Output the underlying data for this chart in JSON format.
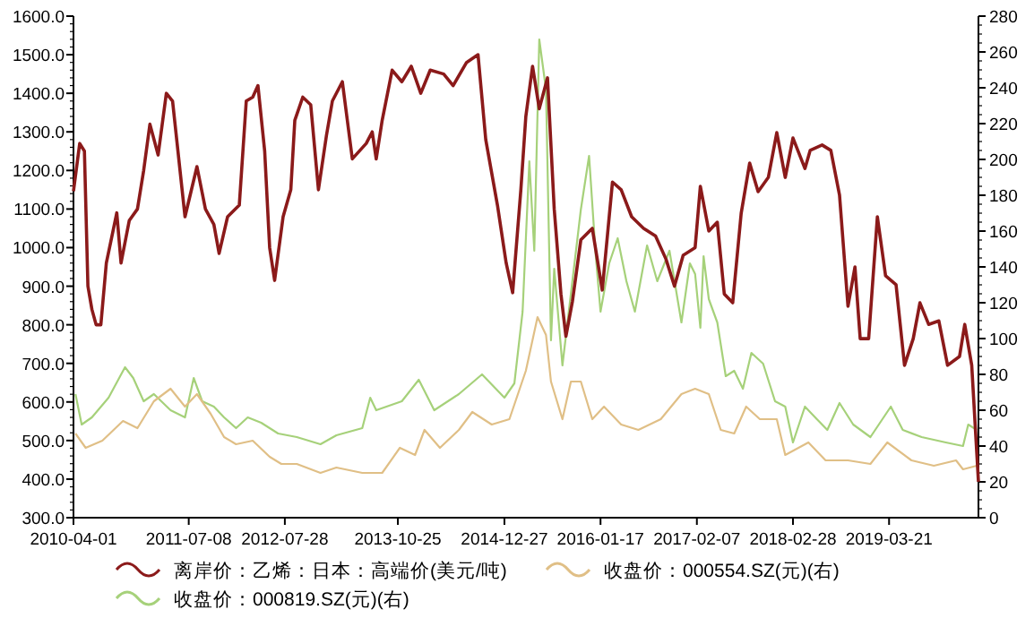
{
  "chart_data": {
    "type": "line",
    "xlim": [
      "2010-04-01",
      "2020-03-14"
    ],
    "xticks": [
      "2010-04-01",
      "2011-07-08",
      "2012-07-28",
      "2013-10-25",
      "2014-12-27",
      "2016-01-17",
      "2017-02-07",
      "2018-02-28",
      "2019-03-21"
    ],
    "ylim": [
      300,
      1600
    ],
    "yticks": [
      {
        "value": 300,
        "label": "300.0"
      },
      {
        "value": 400,
        "label": "400.0"
      },
      {
        "value": 500,
        "label": "500.0"
      },
      {
        "value": 600,
        "label": "600.0"
      },
      {
        "value": 700,
        "label": "700.0"
      },
      {
        "value": 800,
        "label": "800.0"
      },
      {
        "value": 900,
        "label": "900.0"
      },
      {
        "value": 1000,
        "label": "1000.0"
      },
      {
        "value": 1100,
        "label": "1100.0"
      },
      {
        "value": 1200,
        "label": "1200.0"
      },
      {
        "value": 1300,
        "label": "1300.0"
      },
      {
        "value": 1400,
        "label": "1400.0"
      },
      {
        "value": 1500,
        "label": "1500.0"
      },
      {
        "value": 1600,
        "label": "1600.0"
      }
    ],
    "y2lim": [
      0,
      280
    ],
    "y2ticks": [
      0,
      20,
      40,
      60,
      80,
      100,
      120,
      140,
      160,
      180,
      200,
      220,
      240,
      260,
      280
    ],
    "legend": "bottom",
    "series": [
      {
        "name": "离岸价：乙烯：日本：高端价(美元/吨)",
        "color": "#8b1a1a",
        "x": [
          "2010-04-01",
          "2010-04-26",
          "2010-05-15",
          "2010-05-29",
          "2010-06-14",
          "2010-07-01",
          "2010-07-20",
          "2010-08-11",
          "2010-09-22",
          "2010-10-09",
          "2010-11-11",
          "2010-12-14",
          "2011-01-08",
          "2011-02-02",
          "2011-03-07",
          "2011-04-09",
          "2011-05-04",
          "2011-06-23",
          "2011-08-10",
          "2011-09-13",
          "2011-10-17",
          "2011-11-07",
          "2011-12-11",
          "2012-01-27",
          "2012-02-24",
          "2012-03-21",
          "2012-04-11",
          "2012-05-08",
          "2012-05-28",
          "2012-06-17",
          "2012-07-21",
          "2012-08-21",
          "2012-09-06",
          "2012-10-08",
          "2012-11-09",
          "2012-12-10",
          "2013-01-11",
          "2013-02-04",
          "2013-03-16",
          "2013-04-25",
          "2013-06-20",
          "2013-07-14",
          "2013-07-30",
          "2013-08-23",
          "2013-10-02",
          "2013-11-10",
          "2013-12-18",
          "2014-01-25",
          "2014-03-04",
          "2014-04-27",
          "2014-06-04",
          "2014-07-28",
          "2014-09-12",
          "2014-10-13",
          "2014-11-29",
          "2015-01-03",
          "2015-01-29",
          "2015-03-03",
          "2015-03-23",
          "2015-04-19",
          "2015-05-16",
          "2015-06-18",
          "2015-07-15",
          "2015-08-11",
          "2015-08-31",
          "2015-09-26",
          "2015-10-30",
          "2015-12-15",
          "2016-01-24",
          "2016-03-05",
          "2016-04-09",
          "2016-05-21",
          "2016-07-08",
          "2016-08-25",
          "2016-10-06",
          "2016-11-09",
          "2016-12-14",
          "2017-01-31",
          "2017-02-21",
          "2017-03-27",
          "2017-04-30",
          "2017-05-28",
          "2017-07-01",
          "2017-08-04",
          "2017-09-07",
          "2017-10-11",
          "2017-11-21",
          "2017-12-25",
          "2018-01-28",
          "2018-02-28",
          "2018-04-17",
          "2018-05-08",
          "2018-06-25",
          "2018-07-30",
          "2018-09-03",
          "2018-10-07",
          "2018-11-04",
          "2018-11-25",
          "2018-12-29",
          "2019-02-02",
          "2019-03-07",
          "2019-04-18",
          "2019-05-22",
          "2019-06-26",
          "2019-07-23",
          "2019-08-27",
          "2019-10-07",
          "2019-11-11",
          "2019-12-29",
          "2020-01-19",
          "2020-02-16",
          "2020-03-14"
        ],
        "values": [
          1146,
          1270,
          1250,
          900,
          840,
          800,
          800,
          960,
          1090,
          960,
          1070,
          1100,
          1200,
          1320,
          1240,
          1400,
          1380,
          1080,
          1210,
          1100,
          1060,
          985,
          1080,
          1110,
          1380,
          1390,
          1420,
          1250,
          1000,
          915,
          1080,
          1150,
          1330,
          1390,
          1370,
          1150,
          1290,
          1380,
          1430,
          1230,
          1270,
          1300,
          1230,
          1330,
          1460,
          1430,
          1470,
          1400,
          1460,
          1450,
          1420,
          1480,
          1500,
          1280,
          1110,
          960,
          883,
          1150,
          1340,
          1470,
          1360,
          1440,
          1100,
          880,
          770,
          860,
          1020,
          1050,
          890,
          1170,
          1150,
          1080,
          1050,
          1030,
          970,
          900,
          980,
          1000,
          1159,
          1043,
          1066,
          880,
          857,
          1089,
          1219,
          1145,
          1182,
          1298,
          1182,
          1284,
          1205,
          1252,
          1266,
          1252,
          1136,
          848,
          950,
          764,
          764,
          1080,
          927,
          904,
          695,
          764,
          857,
          801,
          810,
          695,
          718,
          801,
          695,
          393
        ]
      },
      {
        "name": "收盘价：000554.SZ(元)(右)",
        "color": "#e0bf86",
        "axis": "y2",
        "x": [
          "2010-04-09",
          "2010-05-20",
          "2010-07-26",
          "2010-10-17",
          "2010-12-14",
          "2011-02-18",
          "2011-04-26",
          "2011-06-23",
          "2011-08-10",
          "2011-10-04",
          "2011-11-27",
          "2012-01-14",
          "2012-03-21",
          "2012-05-28",
          "2012-07-14",
          "2012-09-14",
          "2012-12-18",
          "2013-02-20",
          "2013-06-04",
          "2013-08-23",
          "2013-11-02",
          "2014-01-02",
          "2014-02-09",
          "2014-04-12",
          "2014-06-27",
          "2014-08-20",
          "2014-11-06",
          "2015-01-16",
          "2015-03-23",
          "2015-05-09",
          "2015-06-12",
          "2015-07-02",
          "2015-08-17",
          "2015-09-20",
          "2015-10-30",
          "2015-12-15",
          "2016-01-31",
          "2016-04-09",
          "2016-06-17",
          "2016-09-15",
          "2016-12-07",
          "2017-01-31",
          "2017-03-27",
          "2017-05-14",
          "2017-07-07",
          "2017-08-24",
          "2017-10-18",
          "2017-12-25",
          "2018-01-28",
          "2018-05-01",
          "2018-07-09",
          "2018-10-07",
          "2019-01-05",
          "2019-03-14",
          "2019-06-19",
          "2019-09-17",
          "2019-12-15",
          "2020-01-12",
          "2020-03-07"
        ],
        "values": [
          47,
          39,
          43,
          54,
          50,
          65,
          72,
          62,
          69,
          58,
          45,
          41,
          43,
          34,
          30,
          30,
          25,
          28,
          25,
          25,
          39,
          35,
          49,
          39,
          49,
          59,
          52,
          55,
          82,
          112,
          102,
          76,
          55,
          76,
          76,
          55,
          62,
          52,
          49,
          55,
          69,
          72,
          69,
          49,
          47,
          62,
          55,
          55,
          35,
          42,
          32,
          32,
          30,
          42,
          32,
          29,
          32,
          27,
          29
        ]
      },
      {
        "name": "收盘价：000819.SZ(元)(右)",
        "color": "#a6d17a",
        "axis": "y2",
        "x": [
          "2010-04-09",
          "2010-05-04",
          "2010-06-14",
          "2010-08-20",
          "2010-10-25",
          "2010-11-27",
          "2011-01-08",
          "2011-02-18",
          "2011-04-26",
          "2011-06-23",
          "2011-07-28",
          "2011-08-31",
          "2011-10-17",
          "2011-11-27",
          "2012-01-14",
          "2012-03-01",
          "2012-04-24",
          "2012-07-01",
          "2012-09-14",
          "2012-12-18",
          "2013-02-20",
          "2013-06-04",
          "2013-07-06",
          "2013-07-30",
          "2013-11-10",
          "2014-01-17",
          "2014-03-20",
          "2014-06-27",
          "2014-09-28",
          "2014-12-27",
          "2015-02-05",
          "2015-03-10",
          "2015-04-06",
          "2015-04-26",
          "2015-05-16",
          "2015-06-12",
          "2015-07-02",
          "2015-07-15",
          "2015-08-17",
          "2015-09-20",
          "2015-10-30",
          "2015-12-02",
          "2015-12-29",
          "2016-01-17",
          "2016-02-21",
          "2016-03-26",
          "2016-04-30",
          "2016-06-03",
          "2016-07-22",
          "2016-09-01",
          "2016-10-20",
          "2016-12-07",
          "2017-01-10",
          "2017-01-31",
          "2017-02-21",
          "2017-03-06",
          "2017-03-27",
          "2017-04-30",
          "2017-06-03",
          "2017-07-07",
          "2017-08-11",
          "2017-09-14",
          "2017-10-31",
          "2017-12-18",
          "2018-01-28",
          "2018-02-28",
          "2018-04-17",
          "2018-06-04",
          "2018-07-16",
          "2018-09-03",
          "2018-10-28",
          "2019-01-05",
          "2019-03-28",
          "2019-05-15",
          "2019-07-30",
          "2019-11-04",
          "2020-01-12",
          "2020-02-02",
          "2020-03-07"
        ],
        "values": [
          69,
          52,
          56,
          67,
          84,
          78,
          65,
          69,
          60,
          56,
          78,
          65,
          62,
          56,
          50,
          56,
          53,
          47,
          45,
          41,
          46,
          50,
          67,
          60,
          65,
          77,
          60,
          69,
          80,
          67,
          75,
          115,
          199,
          149,
          267,
          239,
          99,
          139,
          85,
          125,
          172,
          202,
          146,
          115,
          142,
          156,
          132,
          115,
          152,
          132,
          149,
          109,
          142,
          136,
          106,
          146,
          122,
          109,
          79,
          82,
          72,
          92,
          86,
          65,
          62,
          42,
          62,
          55,
          49,
          64,
          52,
          45,
          62,
          49,
          45,
          42,
          40,
          52,
          49
        ]
      }
    ]
  }
}
